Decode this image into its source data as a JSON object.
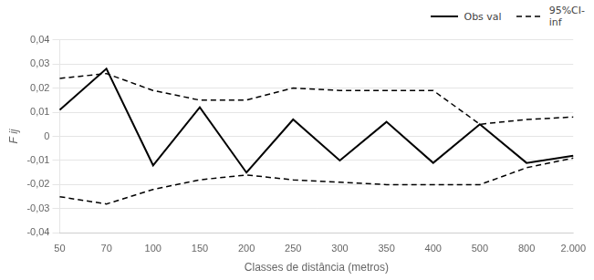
{
  "chart_data": {
    "type": "line",
    "categories": [
      "50",
      "70",
      "100",
      "150",
      "200",
      "250",
      "300",
      "350",
      "400",
      "500",
      "800",
      "2.000"
    ],
    "series": [
      {
        "name": "Obs val",
        "color": "#000000",
        "line_style": "solid",
        "values": [
          0.011,
          0.028,
          -0.012,
          0.012,
          -0.015,
          0.007,
          -0.01,
          0.006,
          -0.011,
          0.005,
          -0.011,
          -0.008
        ]
      },
      {
        "name": "95%CI-\ninf",
        "color": "#000000",
        "line_style": "dashed",
        "values": [
          0.024,
          0.026,
          0.019,
          0.015,
          0.015,
          0.02,
          0.019,
          0.019,
          0.019,
          0.005,
          0.007,
          0.008
        ]
      },
      {
        "color": "#000000",
        "line_style": "dashed",
        "values": [
          -0.025,
          -0.028,
          -0.022,
          -0.018,
          -0.016,
          -0.018,
          -0.019,
          -0.02,
          -0.02,
          -0.02,
          -0.013,
          -0.009
        ]
      }
    ],
    "xlabel": "Classes de distância (metros)",
    "ylabel": "F ij",
    "ylim": [
      -0.04,
      0.04
    ],
    "yticks": [
      {
        "value": -0.04,
        "label": "-0,04"
      },
      {
        "value": -0.03,
        "label": "-0,03"
      },
      {
        "value": -0.02,
        "label": "-0,02"
      },
      {
        "value": -0.01,
        "label": "-0,01"
      },
      0,
      {
        "value": 0.01,
        "label": "0,01"
      },
      {
        "value": 0.02,
        "label": "0,02"
      },
      {
        "value": 0.03,
        "label": "0,03"
      },
      {
        "value": 0.04,
        "label": "0,04"
      }
    ],
    "grid": true,
    "legend": "upper right"
  }
}
